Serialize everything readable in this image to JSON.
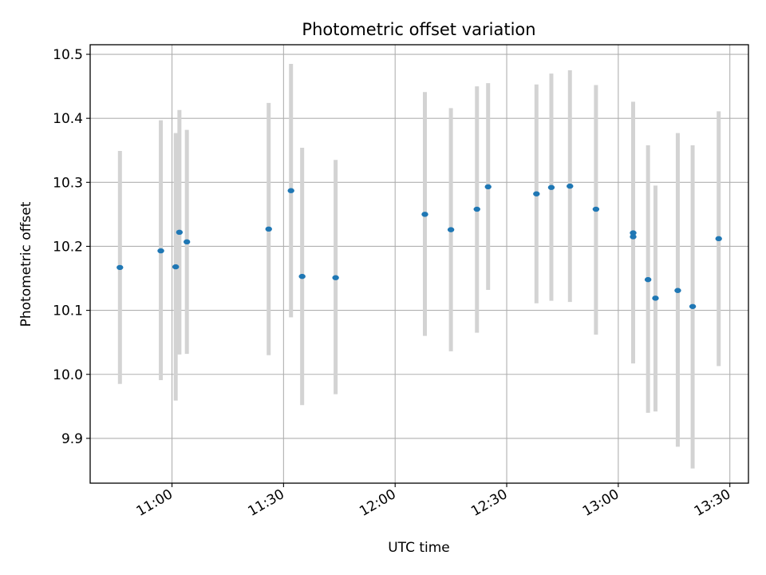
{
  "chart_data": {
    "type": "scatter",
    "title": "Photometric offset variation",
    "xlabel": "UTC time",
    "ylabel": "Photometric offset",
    "grid": true,
    "xlim": [
      "10:38",
      "13:35"
    ],
    "ylim": [
      9.83,
      10.515
    ],
    "x_ticks": [
      "11:00",
      "11:30",
      "12:00",
      "12:30",
      "13:00",
      "13:30"
    ],
    "y_ticks": [
      "9.9",
      "10.0",
      "10.1",
      "10.2",
      "10.3",
      "10.4",
      "10.5"
    ],
    "colors": {
      "points": "#1f77b4",
      "error_bars": "#d3d3d3",
      "grid": "#b0b0b0"
    },
    "points": [
      {
        "x": "10:46",
        "y": 10.167,
        "y_low": 9.985,
        "y_high": 10.349
      },
      {
        "x": "10:57",
        "y": 10.193,
        "y_low": 9.991,
        "y_high": 10.397
      },
      {
        "x": "11:01",
        "y": 10.168,
        "y_low": 9.959,
        "y_high": 10.377
      },
      {
        "x": "11:02",
        "y": 10.222,
        "y_low": 10.031,
        "y_high": 10.413
      },
      {
        "x": "11:04",
        "y": 10.207,
        "y_low": 10.032,
        "y_high": 10.382
      },
      {
        "x": "11:26",
        "y": 10.227,
        "y_low": 10.03,
        "y_high": 10.424
      },
      {
        "x": "11:32",
        "y": 10.287,
        "y_low": 10.089,
        "y_high": 10.485
      },
      {
        "x": "11:35",
        "y": 10.153,
        "y_low": 9.952,
        "y_high": 10.354
      },
      {
        "x": "11:44",
        "y": 10.151,
        "y_low": 9.969,
        "y_high": 10.335
      },
      {
        "x": "12:08",
        "y": 10.25,
        "y_low": 10.06,
        "y_high": 10.441
      },
      {
        "x": "12:15",
        "y": 10.226,
        "y_low": 10.036,
        "y_high": 10.416
      },
      {
        "x": "12:22",
        "y": 10.258,
        "y_low": 10.065,
        "y_high": 10.45
      },
      {
        "x": "12:25",
        "y": 10.293,
        "y_low": 10.132,
        "y_high": 10.455
      },
      {
        "x": "12:38",
        "y": 10.282,
        "y_low": 10.111,
        "y_high": 10.453
      },
      {
        "x": "12:42",
        "y": 10.292,
        "y_low": 10.115,
        "y_high": 10.47
      },
      {
        "x": "12:47",
        "y": 10.294,
        "y_low": 10.113,
        "y_high": 10.475
      },
      {
        "x": "12:54",
        "y": 10.258,
        "y_low": 10.062,
        "y_high": 10.452
      },
      {
        "x": "13:04",
        "y": 10.221,
        "y_low": 10.017,
        "y_high": 10.426
      },
      {
        "x": "13:04",
        "y": 10.215,
        "y_low": 10.026,
        "y_high": 10.403
      },
      {
        "x": "13:08",
        "y": 10.148,
        "y_low": 9.94,
        "y_high": 10.358
      },
      {
        "x": "13:10",
        "y": 10.119,
        "y_low": 9.942,
        "y_high": 10.295
      },
      {
        "x": "13:16",
        "y": 10.131,
        "y_low": 9.887,
        "y_high": 10.377
      },
      {
        "x": "13:20",
        "y": 10.106,
        "y_low": 9.853,
        "y_high": 10.358
      },
      {
        "x": "13:27",
        "y": 10.212,
        "y_low": 10.013,
        "y_high": 10.411
      }
    ]
  }
}
